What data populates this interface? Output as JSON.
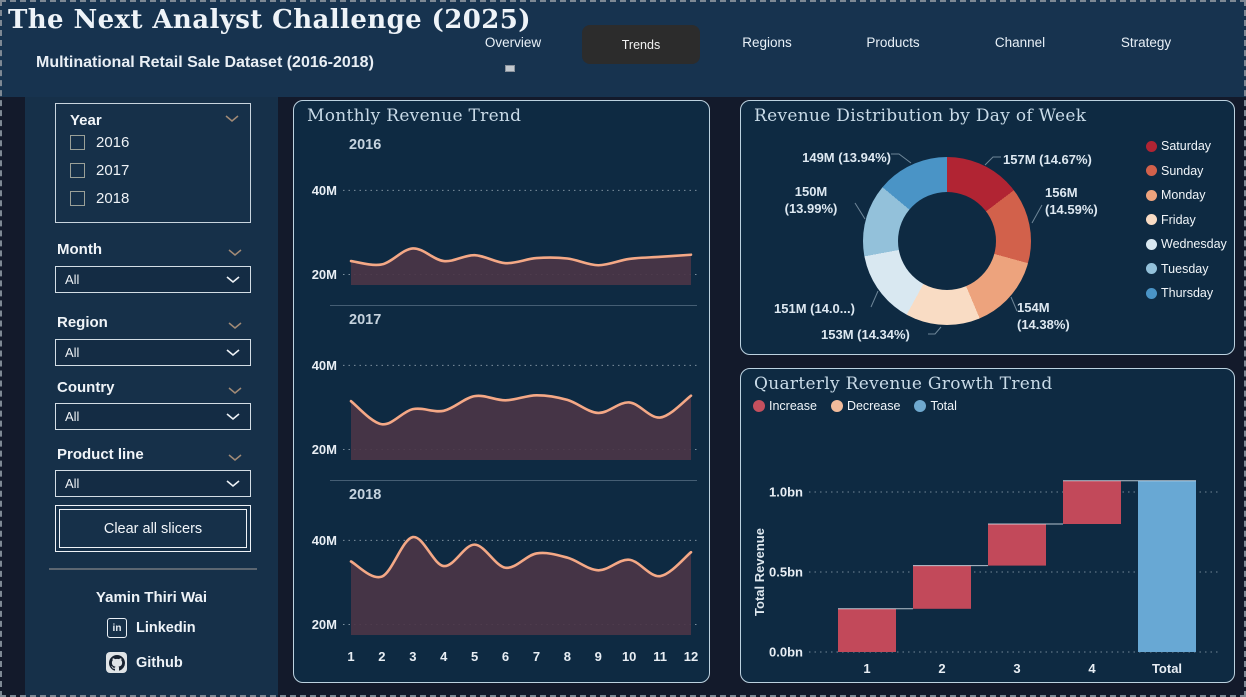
{
  "header": {
    "title": "The Next Analyst Challenge (2025)",
    "subtitle": "Multinational Retail Sale Dataset (2016-2018)",
    "nav": [
      {
        "label": "Overview",
        "active": false
      },
      {
        "label": "Trends",
        "active": true
      },
      {
        "label": "Regions",
        "active": false
      },
      {
        "label": "Products",
        "active": false
      },
      {
        "label": "Channel",
        "active": false
      },
      {
        "label": "Strategy",
        "active": false
      }
    ]
  },
  "sidebar": {
    "year_slicer": {
      "label": "Year",
      "options": [
        {
          "label": "2016",
          "checked": false
        },
        {
          "label": "2017",
          "checked": false
        },
        {
          "label": "2018",
          "checked": false
        }
      ]
    },
    "dropdown_slicers": [
      {
        "label": "Month",
        "value": "All"
      },
      {
        "label": "Region",
        "value": "All"
      },
      {
        "label": "Country",
        "value": "All"
      },
      {
        "label": "Product line",
        "value": "All"
      }
    ],
    "clear_button": "Clear all slicers",
    "author": "Yamin Thiri Wai",
    "links": [
      {
        "label": "Linkedin"
      },
      {
        "label": "Github"
      }
    ]
  },
  "panels": {
    "monthly": {
      "title": "Monthly Revenue Trend"
    },
    "donut": {
      "title": "Revenue Distribution by Day of Week"
    },
    "waterfall": {
      "title": "Quarterly Revenue Growth Trend"
    }
  },
  "chart_data": [
    {
      "type": "area",
      "title": "Monthly Revenue Trend",
      "x": [
        1,
        2,
        3,
        4,
        5,
        6,
        7,
        8,
        9,
        10,
        11,
        12
      ],
      "xlabel": "",
      "ylabel": "",
      "ylim": [
        17.5,
        47
      ],
      "yticks": [
        {
          "v": 20,
          "label": "20M"
        },
        {
          "v": 40,
          "label": "40M"
        }
      ],
      "grid": true,
      "line_color": "#f4a886",
      "fill_color": "#4a3547",
      "series": [
        {
          "name": "2016",
          "values": [
            23.2,
            22.4,
            26.2,
            23.2,
            24.6,
            22.7,
            23.9,
            23.8,
            22.2,
            23.7,
            24.2,
            24.7
          ]
        },
        {
          "name": "2017",
          "values": [
            31.5,
            26.0,
            29.6,
            29.2,
            32.7,
            31.7,
            32.9,
            31.8,
            28.7,
            31.2,
            27.6,
            32.8
          ]
        },
        {
          "name": "2018",
          "values": [
            35.0,
            31.4,
            40.8,
            33.9,
            39.0,
            33.5,
            36.9,
            35.9,
            32.9,
            35.4,
            31.5,
            37.2
          ]
        }
      ]
    },
    {
      "type": "donut",
      "title": "Revenue Distribution by Day of Week",
      "legend_position": "right",
      "slices": [
        {
          "label": "Saturday",
          "value": 157,
          "pct": 14.67,
          "color": "#b12433",
          "callout": [
            "157M (14.67%)"
          ]
        },
        {
          "label": "Sunday",
          "value": 156,
          "pct": 14.59,
          "color": "#d2614b",
          "callout": [
            "156M",
            "(14.59%)"
          ]
        },
        {
          "label": "Monday",
          "value": 154,
          "pct": 14.38,
          "color": "#eda37d",
          "callout": [
            "154M",
            "(14.38%)"
          ]
        },
        {
          "label": "Friday",
          "value": 153,
          "pct": 14.34,
          "color": "#f9dcc4",
          "callout": [
            "153M (14.34%)"
          ]
        },
        {
          "label": "Wednesday",
          "value": 151,
          "pct": 14.09,
          "color": "#d9e8f1",
          "callout": [
            "151M (14.0...)"
          ]
        },
        {
          "label": "Tuesday",
          "value": 150,
          "pct": 13.99,
          "color": "#93c1da",
          "callout": [
            "150M",
            "(13.99%)"
          ]
        },
        {
          "label": "Thursday",
          "value": 149,
          "pct": 13.94,
          "color": "#4a94c6",
          "callout": [
            "149M (13.94%)"
          ]
        }
      ]
    },
    {
      "type": "waterfall",
      "title": "Quarterly Revenue Growth Trend",
      "categories": [
        "1",
        "2",
        "3",
        "4",
        "Total"
      ],
      "increments": [
        0.27,
        0.27,
        0.26,
        0.27
      ],
      "cumulative": [
        0.27,
        0.54,
        0.8,
        1.07
      ],
      "total": 1.07,
      "ylabel": "Total Revenue",
      "ylim": [
        0,
        1.12
      ],
      "yticks": [
        {
          "v": 0,
          "label": "0.0bn"
        },
        {
          "v": 0.5,
          "label": "0.5bn"
        },
        {
          "v": 1.0,
          "label": "1.0bn"
        }
      ],
      "legend": [
        {
          "label": "Increase",
          "color": "#c4505e"
        },
        {
          "label": "Decrease",
          "color": "#f2bb9b"
        },
        {
          "label": "Total",
          "color": "#6fa9cf"
        }
      ],
      "bar_colors": {
        "increase": "#c2495a",
        "total": "#68a8d4"
      }
    }
  ],
  "colors": {
    "page_bg": "#131a2b",
    "header_bg": "#17334f",
    "sidebar_bg": "#163049",
    "panel_bg": "#0e2a42",
    "panel_border": "#bcd2e0",
    "accent_line": "#f4a886"
  }
}
